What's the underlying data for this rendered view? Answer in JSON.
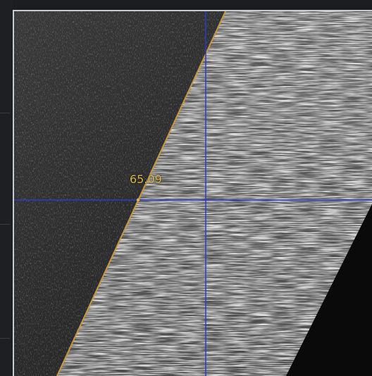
{
  "measurement": {
    "angle_value": "65.09"
  },
  "colors": {
    "crosshair": "#2e3cc0",
    "measure_line": "#c7963f",
    "label": "#d9b64a",
    "frame": "#c9cdd3"
  },
  "icons": {
    "crosshair": "crosshair-icon"
  }
}
